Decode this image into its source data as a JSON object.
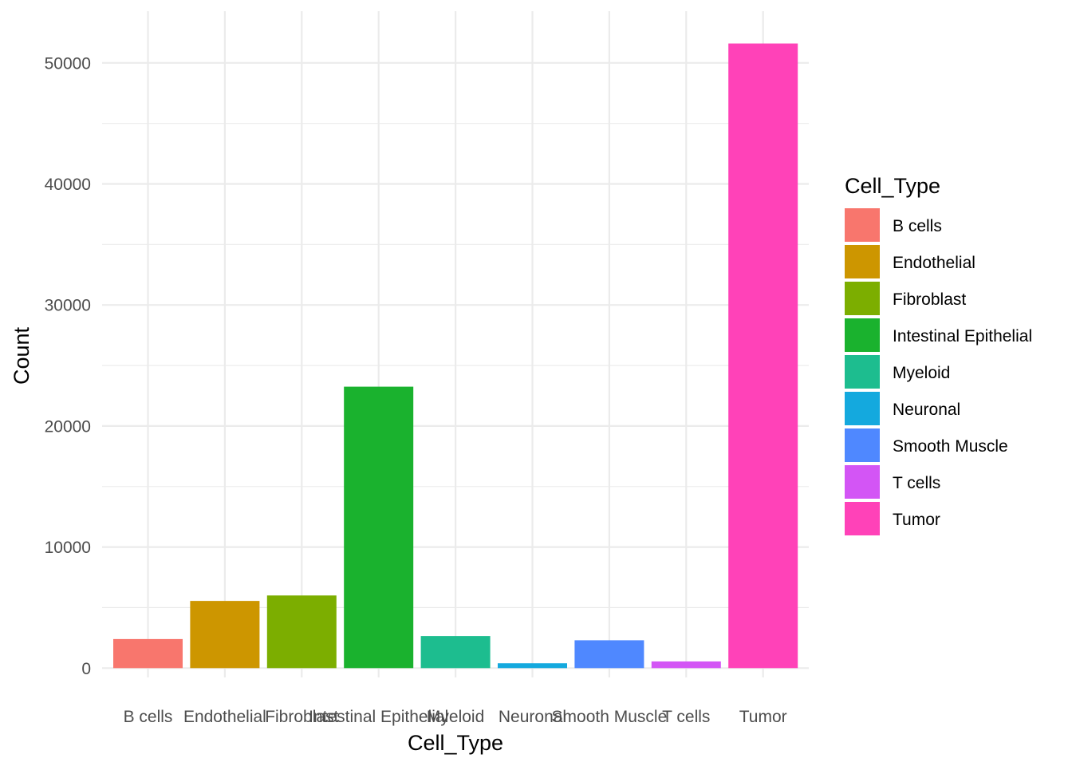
{
  "chart_data": {
    "type": "bar",
    "xlabel": "Cell_Type",
    "ylabel": "Count",
    "categories": [
      "B cells",
      "Endothelial",
      "Fibroblast",
      "Intestinal Epithelial",
      "Myeloid",
      "Neuronal",
      "Smooth Muscle",
      "T cells",
      "Tumor"
    ],
    "values": [
      2400,
      5550,
      6000,
      23250,
      2650,
      400,
      2300,
      550,
      51600
    ],
    "colors": [
      "#F8766D",
      "#CD9600",
      "#7CAE00",
      "#1AB22E",
      "#1DBD8F",
      "#14A9DE",
      "#4F88FF",
      "#D355F5",
      "#FF42B8"
    ],
    "ylim": [
      0,
      54500
    ],
    "yticks": [
      0,
      10000,
      20000,
      30000,
      40000,
      50000
    ],
    "ytick_labels": [
      "0",
      "10000",
      "20000",
      "30000",
      "40000",
      "50000"
    ],
    "grid": true,
    "legend": {
      "title": "Cell_Type",
      "position": "right",
      "entries": [
        "B cells",
        "Endothelial",
        "Fibroblast",
        "Intestinal Epithelial",
        "Myeloid",
        "Neuronal",
        "Smooth Muscle",
        "T cells",
        "Tumor"
      ]
    }
  }
}
